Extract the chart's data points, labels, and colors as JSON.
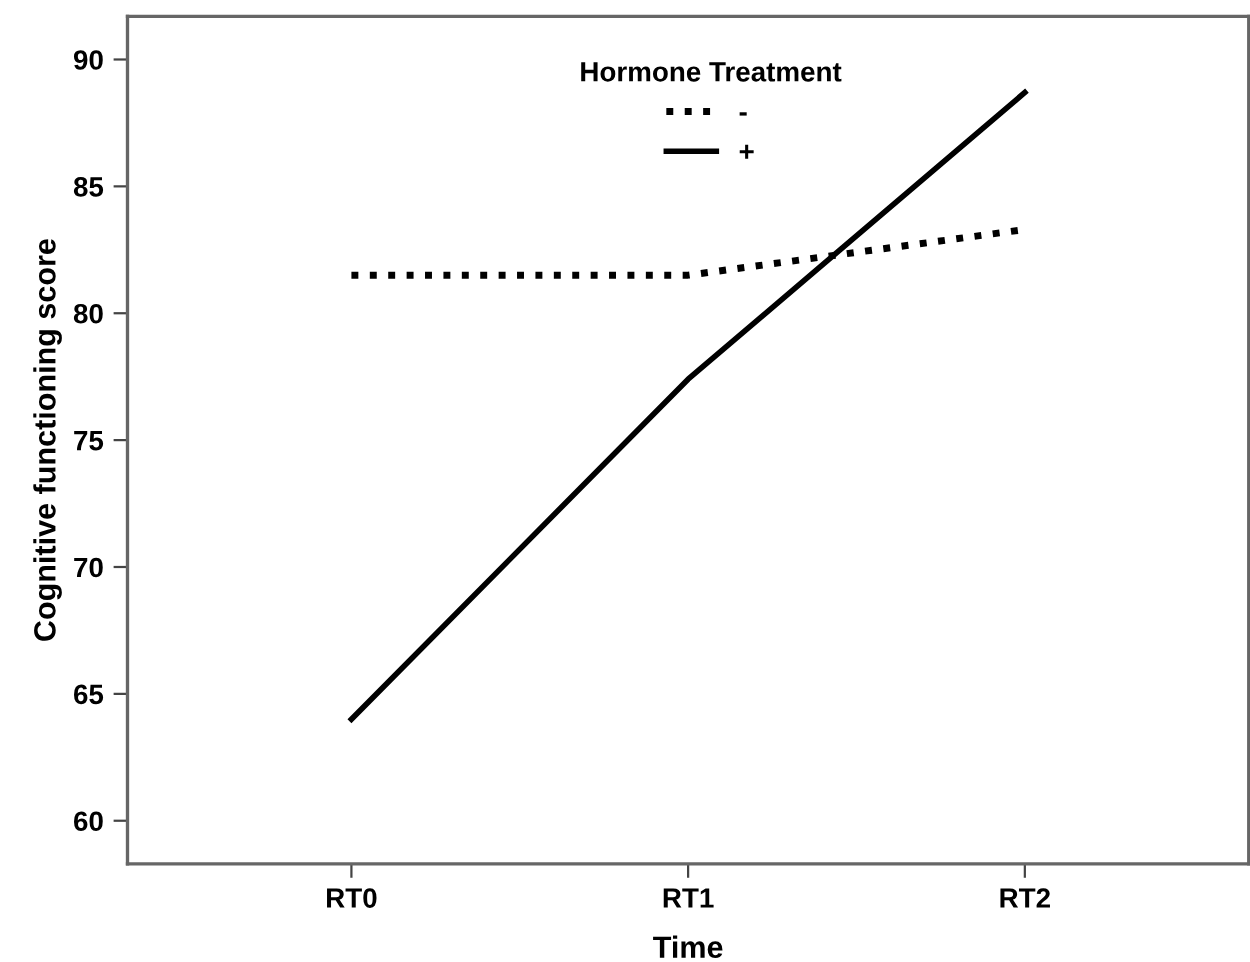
{
  "chart_data": {
    "type": "line",
    "xlabel": "Time",
    "ylabel": "Cognitive functioning score",
    "legend_title": "Hormone Treatment",
    "categories": [
      "RT0",
      "RT1",
      "RT2"
    ],
    "series": [
      {
        "name": "-",
        "color": "#000000",
        "line_style": "dotted",
        "values": [
          81.5,
          81.5,
          83.3
        ]
      },
      {
        "name": "+",
        "color": "#000000",
        "line_style": "solid",
        "values": [
          64.0,
          77.4,
          88.7
        ]
      }
    ],
    "ylim": [
      58.3,
      91.7
    ],
    "yticks": [
      60,
      65,
      70,
      75,
      80,
      85,
      90
    ],
    "grid": false,
    "legend": "top",
    "marker": "none"
  }
}
